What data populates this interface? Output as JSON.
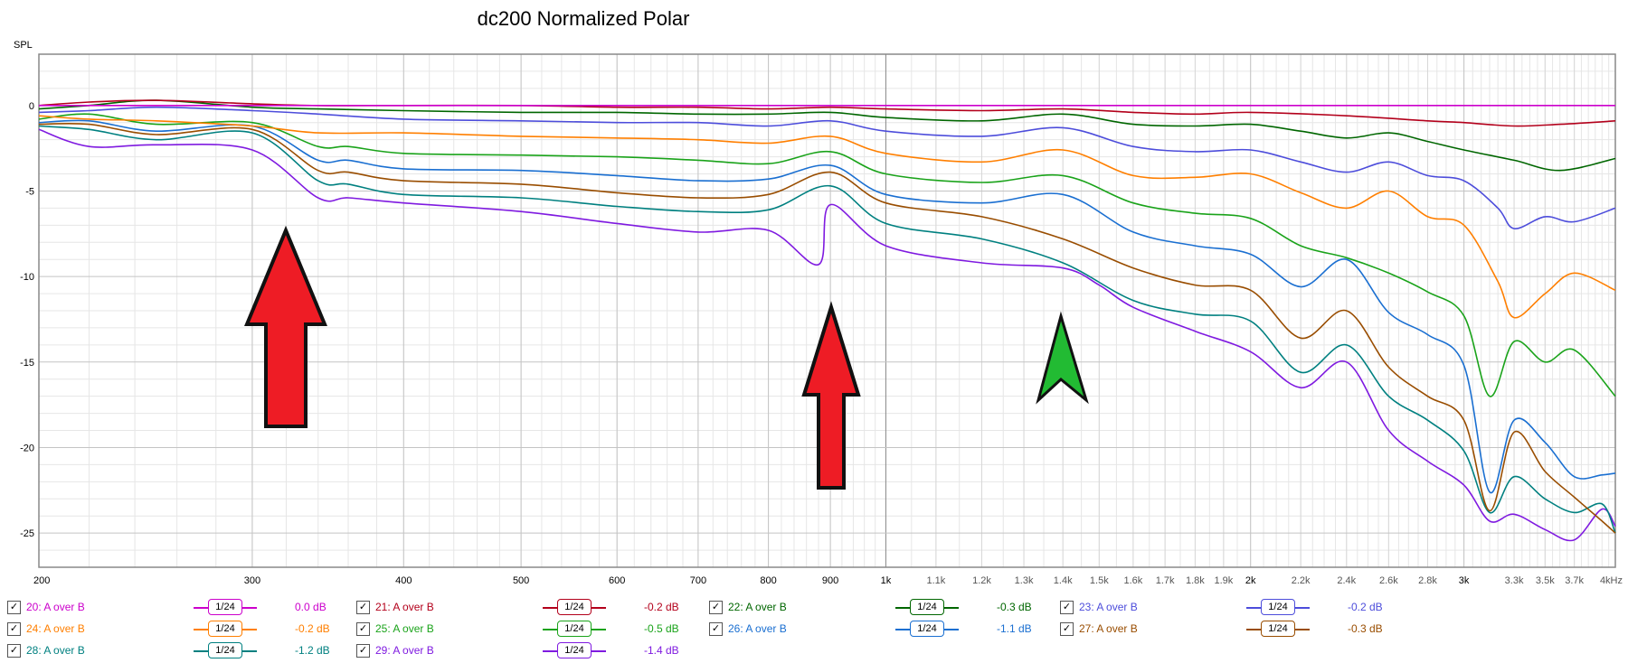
{
  "chart_data": {
    "type": "line",
    "title": "dc200 Normalized Polar",
    "ylabel": "SPL",
    "xlabel": "",
    "x_scale": "log",
    "xlim": [
      200,
      4000
    ],
    "ylim": [
      -27,
      3
    ],
    "y_ticks": [
      0,
      -5,
      -10,
      -15,
      -20,
      -25
    ],
    "x_ticks": [
      {
        "v": 200,
        "label": "200",
        "major": true
      },
      {
        "v": 300,
        "label": "300",
        "major": true
      },
      {
        "v": 400,
        "label": "400",
        "major": true
      },
      {
        "v": 500,
        "label": "500",
        "major": true
      },
      {
        "v": 600,
        "label": "600",
        "major": true
      },
      {
        "v": 700,
        "label": "700",
        "major": true
      },
      {
        "v": 800,
        "label": "800",
        "major": true
      },
      {
        "v": 900,
        "label": "900",
        "major": true
      },
      {
        "v": 1000,
        "label": "1k",
        "major": true
      },
      {
        "v": 1100,
        "label": "1.1k",
        "major": false
      },
      {
        "v": 1200,
        "label": "1.2k",
        "major": false
      },
      {
        "v": 1300,
        "label": "1.3k",
        "major": false
      },
      {
        "v": 1400,
        "label": "1.4k",
        "major": false
      },
      {
        "v": 1500,
        "label": "1.5k",
        "major": false
      },
      {
        "v": 1600,
        "label": "1.6k",
        "major": false
      },
      {
        "v": 1700,
        "label": "1.7k",
        "major": false
      },
      {
        "v": 1800,
        "label": "1.8k",
        "major": false
      },
      {
        "v": 1900,
        "label": "1.9k",
        "major": false
      },
      {
        "v": 2000,
        "label": "2k",
        "major": true
      },
      {
        "v": 2200,
        "label": "2.2k",
        "major": false
      },
      {
        "v": 2400,
        "label": "2.4k",
        "major": false
      },
      {
        "v": 2600,
        "label": "2.6k",
        "major": false
      },
      {
        "v": 2800,
        "label": "2.8k",
        "major": false
      },
      {
        "v": 3000,
        "label": "3k",
        "major": true
      },
      {
        "v": 3300,
        "label": "3.3k",
        "major": false
      },
      {
        "v": 3500,
        "label": "3.5k",
        "major": false
      },
      {
        "v": 3700,
        "label": "3.7k",
        "major": false
      },
      {
        "v": 4000,
        "label": "4kHz",
        "major": false
      }
    ],
    "grid": true,
    "legend_position": "bottom",
    "series": [
      {
        "name": "20: A over B",
        "color": "#cc00cc",
        "smoothing": "1/24",
        "offset": "0.0 dB",
        "x": [
          200,
          300,
          500,
          1000,
          2000,
          3000,
          4000
        ],
        "y": [
          0,
          0,
          0,
          0,
          0,
          0,
          0
        ]
      },
      {
        "name": "21: A over B",
        "color": "#b3001b",
        "smoothing": "1/24",
        "offset": "-0.2 dB",
        "x": [
          200,
          220,
          250,
          300,
          340,
          400,
          500,
          600,
          700,
          800,
          900,
          1000,
          1200,
          1400,
          1600,
          1800,
          2000,
          2400,
          2800,
          3000,
          3300,
          3600,
          4000
        ],
        "y": [
          0,
          0.2,
          0.3,
          0.1,
          0,
          0,
          0,
          -0.1,
          -0.1,
          -0.2,
          -0.1,
          -0.2,
          -0.3,
          -0.2,
          -0.4,
          -0.5,
          -0.4,
          -0.6,
          -0.9,
          -1.0,
          -1.2,
          -1.1,
          -0.9
        ]
      },
      {
        "name": "22: A over B",
        "color": "#006600",
        "smoothing": "1/24",
        "offset": "-0.3 dB",
        "x": [
          200,
          220,
          250,
          300,
          340,
          400,
          500,
          600,
          700,
          800,
          900,
          1000,
          1200,
          1400,
          1600,
          1800,
          2000,
          2200,
          2400,
          2600,
          2800,
          3000,
          3300,
          3600,
          4000
        ],
        "y": [
          -0.2,
          0,
          0.3,
          -0.1,
          -0.2,
          -0.3,
          -0.4,
          -0.4,
          -0.5,
          -0.5,
          -0.4,
          -0.7,
          -0.9,
          -0.5,
          -1.1,
          -1.2,
          -1.1,
          -1.5,
          -1.9,
          -1.6,
          -2.1,
          -2.6,
          -3.2,
          -3.8,
          -3.1
        ]
      },
      {
        "name": "23: A over B",
        "color": "#4d4ddb",
        "smoothing": "1/24",
        "offset": "-0.2 dB",
        "x": [
          200,
          220,
          250,
          300,
          340,
          400,
          500,
          600,
          700,
          800,
          900,
          1000,
          1200,
          1400,
          1600,
          1800,
          2000,
          2200,
          2400,
          2600,
          2800,
          3000,
          3200,
          3300,
          3500,
          3700,
          4000
        ],
        "y": [
          -0.4,
          -0.3,
          -0.1,
          -0.3,
          -0.5,
          -0.8,
          -0.9,
          -1.0,
          -1.0,
          -1.2,
          -0.9,
          -1.5,
          -1.8,
          -1.3,
          -2.4,
          -2.7,
          -2.6,
          -3.3,
          -3.9,
          -3.3,
          -4.1,
          -4.4,
          -6.0,
          -7.2,
          -6.5,
          -6.8,
          -6.0
        ]
      },
      {
        "name": "24: A over B",
        "color": "#ff7f00",
        "smoothing": "1/24",
        "offset": "-0.2 dB",
        "x": [
          200,
          220,
          250,
          300,
          340,
          400,
          500,
          600,
          700,
          800,
          900,
          1000,
          1200,
          1400,
          1600,
          1800,
          2000,
          2200,
          2400,
          2600,
          2800,
          3000,
          3200,
          3300,
          3500,
          3700,
          4000
        ],
        "y": [
          -0.6,
          -0.8,
          -0.9,
          -1.2,
          -1.6,
          -1.6,
          -1.8,
          -1.9,
          -2.0,
          -2.2,
          -1.8,
          -2.8,
          -3.3,
          -2.6,
          -4.1,
          -4.2,
          -4.0,
          -5.1,
          -6.0,
          -5.0,
          -6.5,
          -7.0,
          -10.3,
          -12.4,
          -11.0,
          -9.8,
          -10.8
        ]
      },
      {
        "name": "25: A over B",
        "color": "#1aa31a",
        "smoothing": "1/24",
        "offset": "-0.5 dB",
        "x": [
          200,
          220,
          250,
          300,
          340,
          360,
          400,
          500,
          600,
          700,
          800,
          900,
          1000,
          1200,
          1400,
          1600,
          1800,
          2000,
          2200,
          2400,
          2600,
          2800,
          3000,
          3150,
          3300,
          3500,
          3700,
          4000
        ],
        "y": [
          -0.8,
          -0.5,
          -1.1,
          -1.0,
          -2.4,
          -2.4,
          -2.8,
          -2.9,
          -3.0,
          -3.2,
          -3.4,
          -2.7,
          -4.0,
          -4.5,
          -4.1,
          -5.7,
          -6.3,
          -6.6,
          -8.2,
          -8.9,
          -9.8,
          -10.9,
          -12.3,
          -17.0,
          -13.8,
          -15.0,
          -14.3,
          -17.0
        ]
      },
      {
        "name": "26: A over B",
        "color": "#1a6fd1",
        "smoothing": "1/24",
        "offset": "-1.1 dB",
        "x": [
          200,
          220,
          250,
          300,
          340,
          360,
          400,
          500,
          600,
          700,
          800,
          900,
          1000,
          1200,
          1400,
          1600,
          1800,
          2000,
          2200,
          2400,
          2600,
          2800,
          3000,
          3150,
          3300,
          3500,
          3700,
          3900,
          4000
        ],
        "y": [
          -1.0,
          -0.9,
          -1.5,
          -1.2,
          -3.2,
          -3.2,
          -3.7,
          -3.8,
          -4.1,
          -4.4,
          -4.3,
          -3.5,
          -5.2,
          -5.7,
          -5.2,
          -7.4,
          -8.2,
          -8.7,
          -10.6,
          -9.0,
          -12.1,
          -13.4,
          -15.2,
          -22.6,
          -18.4,
          -19.7,
          -21.7,
          -21.6,
          -21.5
        ]
      },
      {
        "name": "27: A over B",
        "color": "#994d00",
        "smoothing": "1/24",
        "offset": "-0.3 dB",
        "x": [
          200,
          220,
          250,
          300,
          340,
          360,
          400,
          500,
          600,
          700,
          800,
          900,
          1000,
          1200,
          1400,
          1600,
          1800,
          2000,
          2200,
          2400,
          2600,
          2800,
          3000,
          3150,
          3300,
          3500,
          3700,
          3900,
          4000
        ],
        "y": [
          -1.1,
          -1.1,
          -1.7,
          -1.4,
          -3.8,
          -3.9,
          -4.4,
          -4.6,
          -5.1,
          -5.4,
          -5.2,
          -3.9,
          -5.7,
          -6.5,
          -7.8,
          -9.5,
          -10.5,
          -10.8,
          -13.6,
          -12.0,
          -15.3,
          -17.0,
          -18.4,
          -23.7,
          -19.1,
          -21.4,
          -22.9,
          -24.3,
          -25.0
        ]
      },
      {
        "name": "28: A over B",
        "color": "#008080",
        "smoothing": "1/24",
        "offset": "-1.2 dB",
        "x": [
          200,
          220,
          250,
          300,
          340,
          360,
          400,
          500,
          600,
          700,
          800,
          900,
          1000,
          1200,
          1400,
          1600,
          1800,
          2000,
          2200,
          2400,
          2600,
          2800,
          3000,
          3150,
          3300,
          3500,
          3700,
          3900,
          4000
        ],
        "y": [
          -1.2,
          -1.4,
          -2.0,
          -1.6,
          -4.4,
          -4.6,
          -5.2,
          -5.4,
          -5.9,
          -6.2,
          -6.1,
          -4.7,
          -6.9,
          -7.8,
          -9.2,
          -11.4,
          -12.2,
          -12.6,
          -15.6,
          -14.0,
          -17.0,
          -18.4,
          -20.2,
          -23.8,
          -21.7,
          -23.0,
          -23.8,
          -23.3,
          -25.0
        ]
      },
      {
        "name": "29: A over B",
        "color": "#7f1ae0",
        "smoothing": "1/24",
        "offset": "-1.4 dB",
        "x": [
          200,
          220,
          250,
          300,
          340,
          360,
          400,
          500,
          600,
          700,
          800,
          880,
          900,
          1000,
          1200,
          1400,
          1500,
          1600,
          1800,
          2000,
          2200,
          2400,
          2600,
          2800,
          3000,
          3150,
          3300,
          3500,
          3700,
          3900,
          4000
        ],
        "y": [
          -1.4,
          -2.4,
          -2.3,
          -2.6,
          -5.4,
          -5.4,
          -5.7,
          -6.2,
          -6.9,
          -7.4,
          -7.3,
          -9.3,
          -5.8,
          -8.2,
          -9.2,
          -9.5,
          -10.5,
          -11.8,
          -13.2,
          -14.4,
          -16.5,
          -15.0,
          -19.0,
          -20.8,
          -22.2,
          -24.3,
          -23.9,
          -24.8,
          -25.4,
          -23.6,
          -24.6
        ]
      }
    ]
  }
}
